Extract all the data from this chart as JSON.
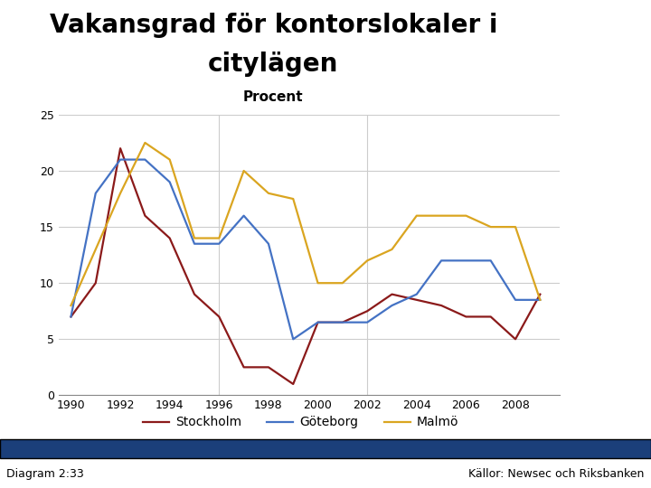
{
  "title_line1": "Vakansgrad för kontorslokaler i",
  "title_line2": "citylägen",
  "subtitle": "Procent",
  "footer_left": "Diagram 2:33",
  "footer_right": "Källor: Newsec och Riksbanken",
  "years": [
    1990,
    1991,
    1992,
    1993,
    1994,
    1995,
    1996,
    1997,
    1998,
    1999,
    2000,
    2001,
    2002,
    2003,
    2004,
    2005,
    2006,
    2007,
    2008,
    2009
  ],
  "stockholm": [
    7.0,
    10.0,
    22.0,
    16.0,
    14.0,
    9.0,
    7.0,
    2.5,
    2.5,
    1.0,
    6.5,
    6.5,
    7.5,
    9.0,
    8.5,
    8.0,
    7.0,
    7.0,
    5.0,
    9.0
  ],
  "goteborg": [
    7.0,
    18.0,
    21.0,
    21.0,
    19.0,
    13.5,
    13.5,
    16.0,
    13.5,
    5.0,
    6.5,
    6.5,
    6.5,
    8.0,
    9.0,
    12.0,
    12.0,
    12.0,
    8.5,
    8.5
  ],
  "malmo": [
    8.0,
    13.0,
    18.0,
    22.5,
    21.0,
    14.0,
    14.0,
    20.0,
    18.0,
    17.5,
    10.0,
    10.0,
    12.0,
    13.0,
    16.0,
    16.0,
    16.0,
    15.0,
    15.0,
    8.5
  ],
  "color_stockholm": "#8B1A1A",
  "color_goteborg": "#4472C4",
  "color_malmo": "#DAA520",
  "ylim": [
    0,
    25
  ],
  "yticks": [
    0,
    5,
    10,
    15,
    20,
    25
  ],
  "xticks": [
    1990,
    1992,
    1994,
    1996,
    1998,
    2000,
    2002,
    2004,
    2006,
    2008
  ],
  "grid_color": "#cccccc",
  "background_color": "#ffffff",
  "title_fontsize": 20,
  "subtitle_fontsize": 11,
  "legend_fontsize": 10,
  "axis_fontsize": 9,
  "footer_fontsize": 9,
  "logo_color": "#1B3F7A",
  "footer_bar_color": "#1B3F7A",
  "xlim_left": 1989.5,
  "xlim_right": 2009.8
}
